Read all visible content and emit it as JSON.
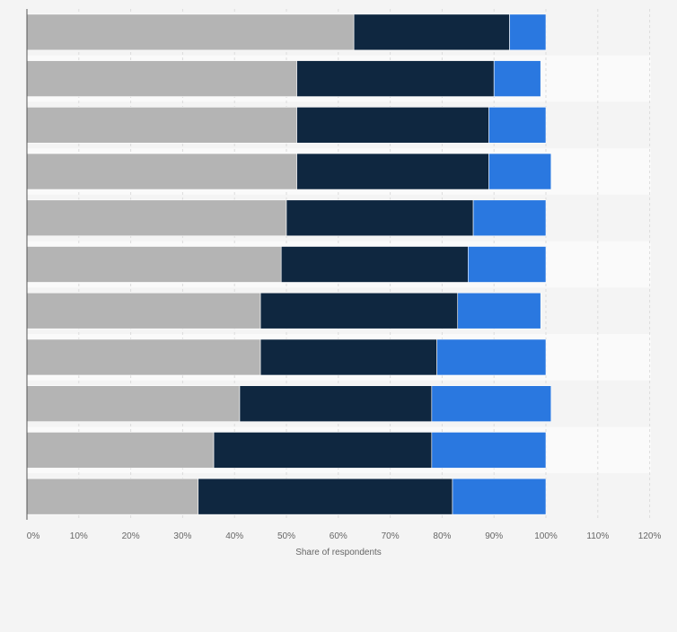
{
  "chart_data": {
    "type": "bar",
    "orientation": "horizontal",
    "stacked": true,
    "categories": [
      "",
      "",
      "",
      "",
      "",
      "",
      "",
      "",
      "",
      "",
      ""
    ],
    "series": [
      {
        "values": [
          63,
          52,
          52,
          52,
          50,
          49,
          45,
          45,
          41,
          36,
          33
        ],
        "color": "#b4b4b4"
      },
      {
        "values": [
          30,
          38,
          37,
          37,
          36,
          36,
          38,
          34,
          37,
          42,
          49
        ],
        "color": "#0f2740"
      },
      {
        "values": [
          7,
          9,
          11,
          12,
          14,
          15,
          16,
          21,
          23,
          22,
          18
        ],
        "color": "#2a78e0"
      }
    ],
    "xlim": [
      0,
      120
    ],
    "xticks": [
      0,
      10,
      20,
      30,
      40,
      50,
      60,
      70,
      80,
      90,
      100,
      110,
      120
    ],
    "tick_suffix": "%",
    "xlabel": "Share of respondents",
    "ylabel": "",
    "title": "",
    "grid": true,
    "legend": "none"
  }
}
